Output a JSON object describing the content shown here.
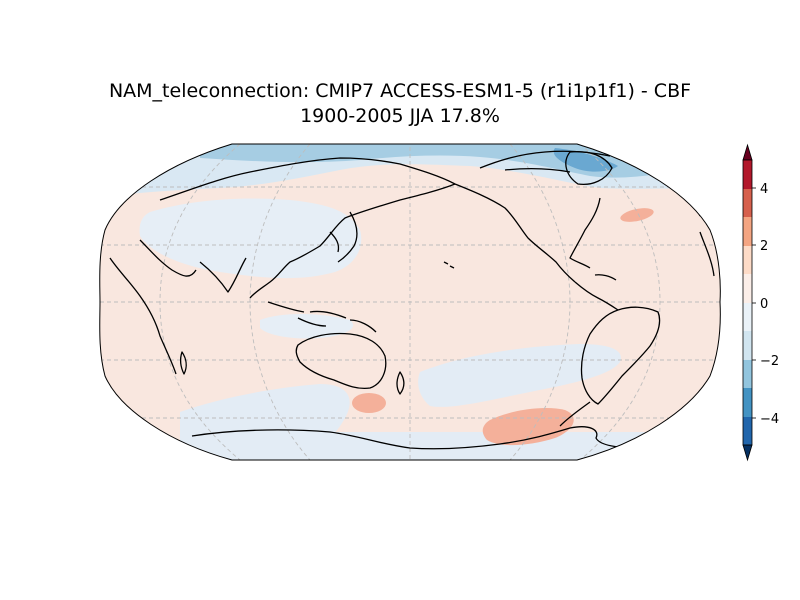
{
  "figure": {
    "title_line1": "NAM_teleconnection: CMIP7 ACCESS-ESM1-5 (r1i1p1f1) - CBF",
    "title_line2": "1900-2005 JJA 17.8%"
  },
  "map": {
    "projection": "Robinson",
    "central_longitude": 180,
    "graticule": "dashed grey",
    "coastlines": "black"
  },
  "colorbar": {
    "levels": [
      -5,
      -4,
      -3,
      -2,
      -1,
      0,
      1,
      2,
      3,
      4,
      5
    ],
    "colors": [
      "#053061",
      "#2166ac",
      "#4393c3",
      "#92c5de",
      "#d1e5f0",
      "#f7f7f7",
      "#fddbc7",
      "#f4a582",
      "#d6604d",
      "#b2182b",
      "#67001f"
    ],
    "tick_values": [
      "4",
      "2",
      "0",
      "−2",
      "−4"
    ],
    "extend": "both"
  },
  "chart_data": {
    "type": "heatmap",
    "title": "NAM_teleconnection: CMIP7 ACCESS-ESM1-5 (r1i1p1f1) - CBF",
    "subtitle": "1900-2005 JJA 17.8%",
    "colorbar_range": [
      -5,
      5
    ],
    "colorbar_ticks": [
      -4,
      -2,
      0,
      2,
      4
    ]
  }
}
